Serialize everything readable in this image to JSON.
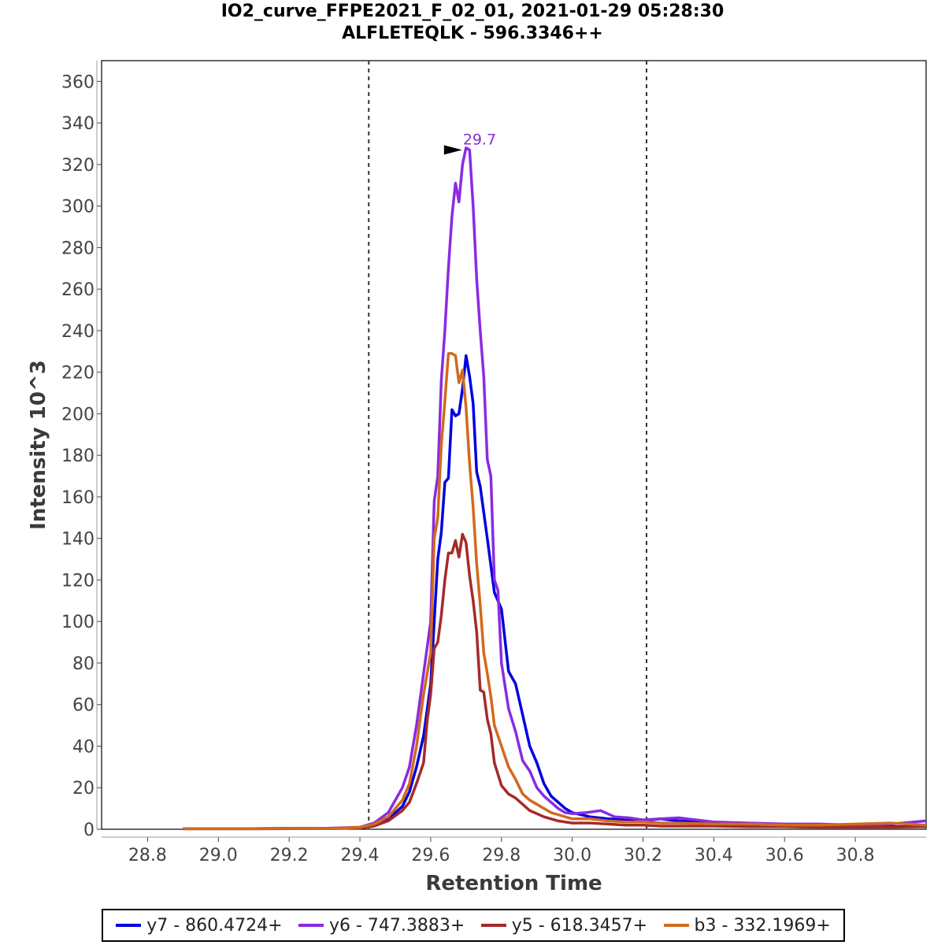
{
  "chart_data": {
    "type": "line",
    "title": "IO2_curve_FFPE2021_F_02_01, 2021-01-29 05:28:30",
    "subtitle": "ALFLETEQLK - 596.3346++",
    "xlabel": "Retention Time",
    "ylabel": "Intensity 10^3",
    "xlim": [
      28.67,
      31.0
    ],
    "ylim": [
      0,
      370
    ],
    "xticks": [
      "28.8",
      "29.0",
      "29.2",
      "29.4",
      "29.6",
      "29.8",
      "30.0",
      "30.2",
      "30.4",
      "30.6",
      "30.8"
    ],
    "yticks": [
      "0",
      "20",
      "40",
      "60",
      "80",
      "100",
      "120",
      "140",
      "160",
      "180",
      "200",
      "220",
      "240",
      "260",
      "280",
      "300",
      "320",
      "340",
      "360"
    ],
    "vlines": [
      29.425,
      30.21
    ],
    "peak_annotation": {
      "x": 29.7,
      "y": 327,
      "label": "29.7",
      "color": "#8a2be2"
    },
    "legend_position": "bottom",
    "series": [
      {
        "name": "y7 - 860.4724+",
        "color": "#0000e0",
        "points": [
          [
            28.9,
            0.3
          ],
          [
            29.0,
            0.3
          ],
          [
            29.1,
            0.3
          ],
          [
            29.2,
            0.4
          ],
          [
            29.3,
            0.3
          ],
          [
            29.4,
            0.8
          ],
          [
            29.44,
            2
          ],
          [
            29.48,
            5
          ],
          [
            29.52,
            11
          ],
          [
            29.54,
            18
          ],
          [
            29.56,
            30
          ],
          [
            29.58,
            45
          ],
          [
            29.6,
            70
          ],
          [
            29.62,
            130
          ],
          [
            29.63,
            143
          ],
          [
            29.64,
            167
          ],
          [
            29.65,
            169
          ],
          [
            29.66,
            202
          ],
          [
            29.67,
            199
          ],
          [
            29.68,
            200
          ],
          [
            29.69,
            212
          ],
          [
            29.7,
            228
          ],
          [
            29.71,
            218
          ],
          [
            29.72,
            205
          ],
          [
            29.73,
            172
          ],
          [
            29.74,
            165
          ],
          [
            29.76,
            140
          ],
          [
            29.78,
            114
          ],
          [
            29.8,
            106
          ],
          [
            29.82,
            76
          ],
          [
            29.84,
            70
          ],
          [
            29.86,
            55
          ],
          [
            29.88,
            40
          ],
          [
            29.9,
            32
          ],
          [
            29.92,
            22
          ],
          [
            29.94,
            16
          ],
          [
            29.96,
            13
          ],
          [
            29.98,
            10
          ],
          [
            30.0,
            8
          ],
          [
            30.05,
            6
          ],
          [
            30.1,
            5
          ],
          [
            30.15,
            4.5
          ],
          [
            30.2,
            4
          ],
          [
            30.25,
            5
          ],
          [
            30.3,
            4
          ],
          [
            30.4,
            3
          ],
          [
            30.5,
            2
          ],
          [
            30.6,
            2
          ],
          [
            30.7,
            1.5
          ],
          [
            30.8,
            1.5
          ],
          [
            30.9,
            1.2
          ],
          [
            31.0,
            1.5
          ]
        ]
      },
      {
        "name": "y6 - 747.3883+",
        "color": "#8a2be2",
        "points": [
          [
            28.9,
            0.3
          ],
          [
            29.0,
            0.3
          ],
          [
            29.1,
            0.3
          ],
          [
            29.2,
            0.4
          ],
          [
            29.3,
            0.4
          ],
          [
            29.4,
            1
          ],
          [
            29.44,
            3
          ],
          [
            29.48,
            8
          ],
          [
            29.5,
            14
          ],
          [
            29.52,
            20
          ],
          [
            29.54,
            30
          ],
          [
            29.56,
            50
          ],
          [
            29.58,
            75
          ],
          [
            29.6,
            100
          ],
          [
            29.61,
            158
          ],
          [
            29.62,
            170
          ],
          [
            29.63,
            216
          ],
          [
            29.64,
            240
          ],
          [
            29.65,
            270
          ],
          [
            29.66,
            295
          ],
          [
            29.67,
            311
          ],
          [
            29.68,
            302
          ],
          [
            29.69,
            320
          ],
          [
            29.7,
            328
          ],
          [
            29.71,
            327
          ],
          [
            29.72,
            300
          ],
          [
            29.73,
            265
          ],
          [
            29.74,
            240
          ],
          [
            29.75,
            218
          ],
          [
            29.76,
            178
          ],
          [
            29.77,
            170
          ],
          [
            29.78,
            120
          ],
          [
            29.79,
            115
          ],
          [
            29.8,
            80
          ],
          [
            29.82,
            58
          ],
          [
            29.84,
            47
          ],
          [
            29.86,
            33
          ],
          [
            29.88,
            28
          ],
          [
            29.9,
            20
          ],
          [
            29.92,
            16
          ],
          [
            29.94,
            13
          ],
          [
            29.96,
            10
          ],
          [
            29.98,
            8
          ],
          [
            30.0,
            7.5
          ],
          [
            30.04,
            8
          ],
          [
            30.08,
            9
          ],
          [
            30.12,
            6
          ],
          [
            30.16,
            5.5
          ],
          [
            30.2,
            4.5
          ],
          [
            30.25,
            5
          ],
          [
            30.3,
            5.5
          ],
          [
            30.4,
            3.5
          ],
          [
            30.5,
            3
          ],
          [
            30.6,
            2.5
          ],
          [
            30.7,
            2.5
          ],
          [
            30.8,
            2
          ],
          [
            30.9,
            2.5
          ],
          [
            31.0,
            4
          ]
        ]
      },
      {
        "name": "y5 - 618.3457+",
        "color": "#a52a2a",
        "points": [
          [
            28.9,
            0.2
          ],
          [
            29.0,
            0.2
          ],
          [
            29.1,
            0.2
          ],
          [
            29.2,
            0.3
          ],
          [
            29.3,
            0.3
          ],
          [
            29.4,
            0.6
          ],
          [
            29.44,
            1.5
          ],
          [
            29.48,
            4
          ],
          [
            29.52,
            9
          ],
          [
            29.54,
            13
          ],
          [
            29.56,
            22
          ],
          [
            29.58,
            32
          ],
          [
            29.59,
            52
          ],
          [
            29.6,
            65
          ],
          [
            29.61,
            87
          ],
          [
            29.62,
            90
          ],
          [
            29.63,
            103
          ],
          [
            29.64,
            120
          ],
          [
            29.65,
            133
          ],
          [
            29.66,
            133
          ],
          [
            29.67,
            139
          ],
          [
            29.68,
            131
          ],
          [
            29.69,
            142
          ],
          [
            29.7,
            138
          ],
          [
            29.71,
            122
          ],
          [
            29.72,
            110
          ],
          [
            29.73,
            95
          ],
          [
            29.74,
            67
          ],
          [
            29.75,
            66
          ],
          [
            29.76,
            53
          ],
          [
            29.77,
            46
          ],
          [
            29.78,
            32
          ],
          [
            29.8,
            21
          ],
          [
            29.82,
            17
          ],
          [
            29.84,
            15
          ],
          [
            29.86,
            12
          ],
          [
            29.88,
            9
          ],
          [
            29.9,
            7.5
          ],
          [
            29.92,
            6
          ],
          [
            29.94,
            5
          ],
          [
            29.96,
            4
          ],
          [
            29.98,
            3.5
          ],
          [
            30.0,
            3
          ],
          [
            30.05,
            3
          ],
          [
            30.1,
            2.5
          ],
          [
            30.15,
            2
          ],
          [
            30.2,
            2
          ],
          [
            30.25,
            1.5
          ],
          [
            30.3,
            1.5
          ],
          [
            30.4,
            1.5
          ],
          [
            30.5,
            1.2
          ],
          [
            30.6,
            1.2
          ],
          [
            30.7,
            1
          ],
          [
            30.8,
            1
          ],
          [
            30.9,
            1
          ],
          [
            31.0,
            1.2
          ]
        ]
      },
      {
        "name": "b3 - 332.1969+",
        "color": "#d2691e",
        "points": [
          [
            28.9,
            0.3
          ],
          [
            29.0,
            0.3
          ],
          [
            29.1,
            0.3
          ],
          [
            29.2,
            0.4
          ],
          [
            29.3,
            0.3
          ],
          [
            29.4,
            0.9
          ],
          [
            29.44,
            2.5
          ],
          [
            29.48,
            6
          ],
          [
            29.52,
            14
          ],
          [
            29.54,
            22
          ],
          [
            29.56,
            40
          ],
          [
            29.58,
            65
          ],
          [
            29.6,
            85
          ],
          [
            29.61,
            140
          ],
          [
            29.62,
            150
          ],
          [
            29.63,
            185
          ],
          [
            29.64,
            206
          ],
          [
            29.65,
            229
          ],
          [
            29.66,
            229
          ],
          [
            29.67,
            228
          ],
          [
            29.68,
            215
          ],
          [
            29.69,
            221
          ],
          [
            29.7,
            203
          ],
          [
            29.71,
            176
          ],
          [
            29.72,
            155
          ],
          [
            29.73,
            128
          ],
          [
            29.74,
            108
          ],
          [
            29.75,
            85
          ],
          [
            29.76,
            75
          ],
          [
            29.77,
            64
          ],
          [
            29.78,
            50
          ],
          [
            29.8,
            40
          ],
          [
            29.82,
            30
          ],
          [
            29.84,
            24
          ],
          [
            29.86,
            17
          ],
          [
            29.88,
            14
          ],
          [
            29.9,
            12
          ],
          [
            29.92,
            10
          ],
          [
            29.94,
            8
          ],
          [
            29.96,
            7
          ],
          [
            29.98,
            6
          ],
          [
            30.0,
            5
          ],
          [
            30.05,
            5
          ],
          [
            30.1,
            4
          ],
          [
            30.15,
            3.5
          ],
          [
            30.2,
            3.5
          ],
          [
            30.25,
            3
          ],
          [
            30.3,
            3
          ],
          [
            30.4,
            2.5
          ],
          [
            30.5,
            2.5
          ],
          [
            30.6,
            2
          ],
          [
            30.7,
            2
          ],
          [
            30.8,
            2.5
          ],
          [
            30.9,
            3
          ],
          [
            31.0,
            2
          ]
        ]
      }
    ]
  }
}
